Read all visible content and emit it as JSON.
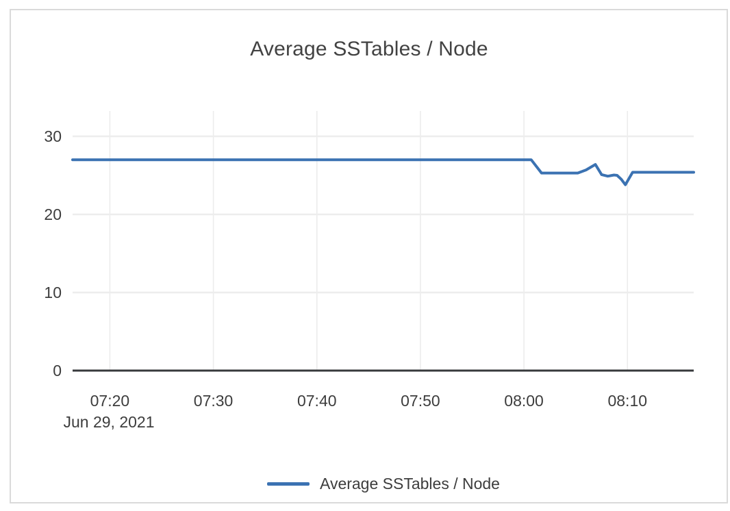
{
  "colors": {
    "series_blue": "#3b72b2",
    "grid_horizontal": "#ededed",
    "grid_vertical": "#ececec",
    "axis_line": "#37393c",
    "text": "#3d3d3d",
    "title_text": "#424242",
    "card_border": "#dadada",
    "background": "#ffffff"
  },
  "chart_data": {
    "type": "line",
    "title": "Average SSTables / Node",
    "x_date_label": "Jun 29, 2021",
    "x_unit": "minutes-since-midnight",
    "x_range": [
      436.4,
      496.4
    ],
    "y_range": [
      0,
      33.25
    ],
    "x_ticks": [
      {
        "label": "07:20",
        "t": 440
      },
      {
        "label": "07:30",
        "t": 450
      },
      {
        "label": "07:40",
        "t": 460
      },
      {
        "label": "07:50",
        "t": 470
      },
      {
        "label": "08:00",
        "t": 480
      },
      {
        "label": "08:10",
        "t": 490
      }
    ],
    "y_ticks": [
      0,
      10,
      20,
      30
    ],
    "grid": true,
    "legend_position": "bottom-center",
    "series": [
      {
        "name": "Average SSTables / Node",
        "color": "#3b72b2",
        "points": [
          [
            436.4,
            27.0
          ],
          [
            480.7,
            27.0
          ],
          [
            481.7,
            25.3
          ],
          [
            485.2,
            25.3
          ],
          [
            486.0,
            25.7
          ],
          [
            486.9,
            26.4
          ],
          [
            487.5,
            25.1
          ],
          [
            488.1,
            24.9
          ],
          [
            488.7,
            25.05
          ],
          [
            489.0,
            25.0
          ],
          [
            489.4,
            24.5
          ],
          [
            489.8,
            23.8
          ],
          [
            490.5,
            25.4
          ],
          [
            496.4,
            25.4
          ]
        ]
      }
    ]
  }
}
